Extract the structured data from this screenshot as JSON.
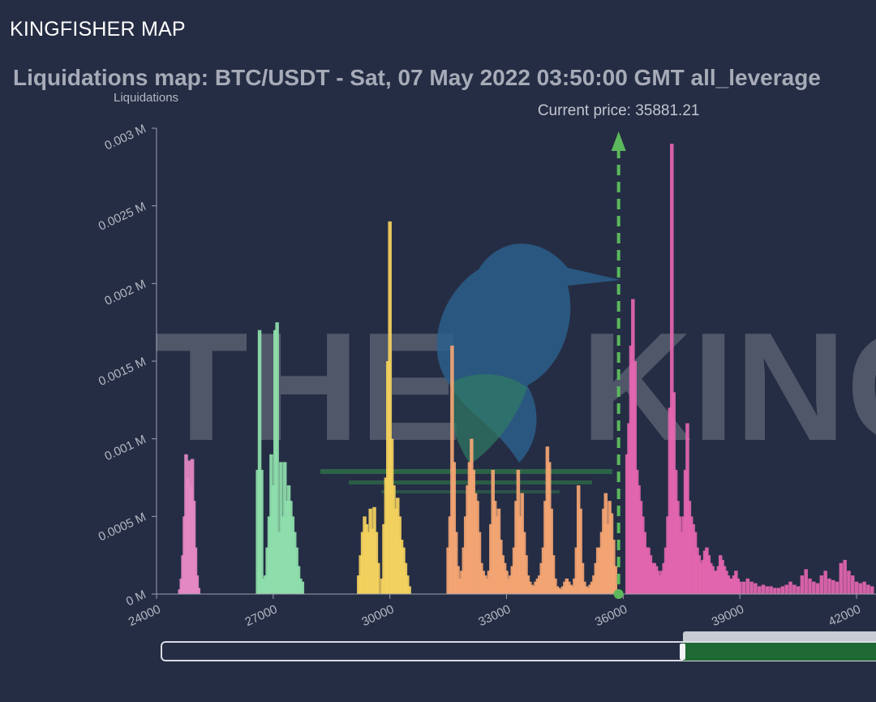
{
  "header": {
    "brand": "KINGFISHER MAP"
  },
  "chart_data": {
    "type": "bar",
    "title": "Liquidations map: BTC/USDT - Sat, 07 May 2022 03:50:00 GMT all_leverage",
    "ylabel": "Liquidations",
    "xlabel": "",
    "xlim": [
      24000,
      42500
    ],
    "ylim": [
      0,
      0.003
    ],
    "y_unit": "M",
    "x_ticks": [
      "24000",
      "27000",
      "30000",
      "33000",
      "36000",
      "39000",
      "42000"
    ],
    "y_ticks": [
      "0 M",
      "0.0005 M",
      "0.001 M",
      "0.0015 M",
      "0.002 M",
      "0.0025 M",
      "0.003 M"
    ],
    "grid": false,
    "watermark": "THE KINGFISHER",
    "annotation": {
      "label": "Current price: 35881.21",
      "price": 35881.21,
      "color": "#5cb85c"
    },
    "series": [
      {
        "color": "#e589c4",
        "x": [
          24600,
          24640,
          24680,
          24720,
          24760,
          24800,
          24840,
          24880,
          24920,
          24960,
          25000,
          25040,
          25080
        ],
        "values": [
          3e-05,
          0.0001,
          0.00025,
          0.0005,
          0.0009,
          0.00075,
          0.00086,
          0.0007,
          0.00087,
          0.0006,
          0.0003,
          0.00012,
          4e-05
        ]
      },
      {
        "color": "#8fe0ad",
        "x": [
          26600,
          26650,
          26700,
          26750,
          26800,
          26850,
          26900,
          26950,
          27000,
          27050,
          27100,
          27150,
          27200,
          27250,
          27300,
          27350,
          27400,
          27450,
          27500,
          27550,
          27600,
          27650,
          27700,
          27750
        ],
        "values": [
          0.0008,
          0.0017,
          0.0008,
          0.0001,
          0.00012,
          0.0003,
          0.0005,
          0.0009,
          0.0007,
          0.0017,
          0.00175,
          0.0004,
          0.00085,
          0.0005,
          0.00085,
          0.0006,
          0.0007,
          0.0006,
          0.0005,
          0.0004,
          0.0003,
          0.00018,
          0.0001,
          8e-05
        ]
      },
      {
        "color": "#f5d35e",
        "x": [
          29200,
          29250,
          29300,
          29350,
          29400,
          29450,
          29500,
          29550,
          29600,
          29650,
          29700,
          29800,
          29850,
          29900,
          29950,
          30000,
          30050,
          30100,
          30150,
          30200,
          30250,
          30300,
          30350,
          30400,
          30450,
          30500
        ],
        "values": [
          0.00012,
          0.00025,
          0.0004,
          0.0005,
          0.00045,
          0.0004,
          0.00055,
          0.00042,
          0.00056,
          0.0004,
          0.0002,
          0.0001,
          0.00045,
          0.00075,
          0.0015,
          0.0024,
          0.001,
          0.0007,
          0.00055,
          0.00062,
          0.0005,
          0.00035,
          0.0003,
          0.0002,
          0.00012,
          5e-05
        ]
      },
      {
        "color": "#f5a673",
        "x": [
          31500,
          31550,
          31600,
          31650,
          31700,
          31750,
          31800,
          31850,
          31900,
          31950,
          32000,
          32050,
          32100,
          32150,
          32200,
          32250,
          32300,
          32350,
          32400,
          32450,
          32500,
          32550,
          32600,
          32650,
          32700,
          32750,
          32800,
          32850,
          32900,
          32950,
          33000,
          33050,
          33100,
          33150,
          33200,
          33250,
          33300,
          33350,
          33400,
          33450,
          33500,
          33550,
          33600,
          33650,
          33700,
          33750,
          33800,
          33850,
          33900,
          33950,
          34000,
          34050,
          34100,
          34150,
          34200,
          34250,
          34300,
          34350,
          34400,
          34450,
          34500,
          34550,
          34600,
          34650,
          34700,
          34750,
          34800,
          34850,
          34900,
          34950,
          35000,
          35050,
          35100,
          35150,
          35200,
          35250,
          35300,
          35350,
          35400,
          35450,
          35500,
          35550,
          35600,
          35650,
          35700,
          35750,
          35800
        ],
        "values": [
          0.0003,
          0.0005,
          0.0016,
          0.00085,
          0.0004,
          0.00018,
          0.0001,
          0.00015,
          0.0003,
          0.0005,
          0.0007,
          0.00085,
          0.001,
          0.0008,
          0.00065,
          0.0006,
          0.0004,
          0.0002,
          0.00015,
          0.00012,
          0.0001,
          0.00015,
          0.00045,
          0.0008,
          0.0006,
          0.0005,
          0.00055,
          0.00035,
          0.00025,
          0.0002,
          0.00015,
          0.0001,
          0.00012,
          0.00018,
          0.0003,
          0.0006,
          0.0008,
          0.0005,
          0.00065,
          0.0004,
          0.00025,
          0.00012,
          8e-05,
          6e-05,
          5e-05,
          8e-05,
          0.0001,
          0.00012,
          0.0002,
          0.0003,
          0.0006,
          0.00095,
          0.00085,
          0.00055,
          0.00025,
          0.0001,
          5e-05,
          4e-05,
          3e-05,
          5e-05,
          8e-05,
          0.0001,
          8e-05,
          6e-05,
          5e-05,
          0.0001,
          0.0003,
          0.0007,
          0.00055,
          0.0002,
          8e-05,
          5e-05,
          4e-05,
          6e-05,
          8e-05,
          0.00012,
          0.0002,
          0.0003,
          0.0003,
          0.0004,
          0.00055,
          0.00065,
          0.00045,
          0.0006,
          0.00052,
          0.00035,
          0.00018
        ]
      },
      {
        "color": "#e466b0",
        "x": [
          36100,
          36150,
          36200,
          36250,
          36300,
          36350,
          36400,
          36450,
          36500,
          36550,
          36600,
          36650,
          36700,
          36750,
          36800,
          36850,
          36900,
          36950,
          37000,
          37050,
          37100,
          37150,
          37200,
          37250,
          37300,
          37350,
          37400,
          37450,
          37500,
          37550,
          37600,
          37650,
          37700,
          37750,
          37800,
          37850,
          37900,
          37950,
          38000,
          38050,
          38100,
          38150,
          38200,
          38250,
          38300,
          38350,
          38400,
          38450,
          38500,
          38550,
          38600,
          38650,
          38700,
          38750,
          38800,
          38850,
          38900,
          38950,
          39000,
          39100,
          39200,
          39300,
          39400,
          39500,
          39600,
          39700,
          39800,
          39900,
          40000,
          40100,
          40200,
          40300,
          40400,
          40500,
          40600,
          40700,
          40800,
          40900,
          41000,
          41100,
          41200,
          41300,
          41400,
          41500,
          41600,
          41700,
          41800,
          41900,
          42000,
          42100,
          42200,
          42300,
          42400
        ],
        "values": [
          0.0009,
          0.0011,
          0.0016,
          0.0019,
          0.0015,
          0.0008,
          0.0007,
          0.0006,
          0.0005,
          0.0004,
          0.0003,
          0.0003,
          0.00025,
          0.0002,
          0.0002,
          0.00018,
          0.00015,
          0.00012,
          0.00015,
          0.0002,
          0.0003,
          0.0005,
          0.0012,
          0.0029,
          0.0013,
          0.0008,
          0.0006,
          0.0005,
          0.0004,
          0.0005,
          0.0008,
          0.0011,
          0.0006,
          0.0005,
          0.00045,
          0.0004,
          0.0003,
          0.00025,
          0.0002,
          0.00022,
          0.00028,
          0.0003,
          0.00025,
          0.0002,
          0.00018,
          0.00015,
          0.00015,
          0.00018,
          0.00025,
          0.00022,
          0.00018,
          0.00015,
          0.00012,
          0.0001,
          0.0001,
          0.00012,
          0.00015,
          0.0001,
          8e-05,
          8e-05,
          0.0001,
          8e-05,
          7e-05,
          5e-05,
          6e-05,
          5e-05,
          5e-05,
          4e-05,
          4e-05,
          5e-05,
          6e-05,
          8e-05,
          6e-05,
          5e-05,
          0.00012,
          0.00016,
          0.0001,
          8e-05,
          7e-05,
          0.00012,
          0.00015,
          0.0001,
          9e-05,
          8e-05,
          0.0002,
          0.00022,
          0.00015,
          0.00012,
          8e-05,
          7e-05,
          8e-05,
          6e-05,
          5e-05
        ]
      }
    ]
  }
}
